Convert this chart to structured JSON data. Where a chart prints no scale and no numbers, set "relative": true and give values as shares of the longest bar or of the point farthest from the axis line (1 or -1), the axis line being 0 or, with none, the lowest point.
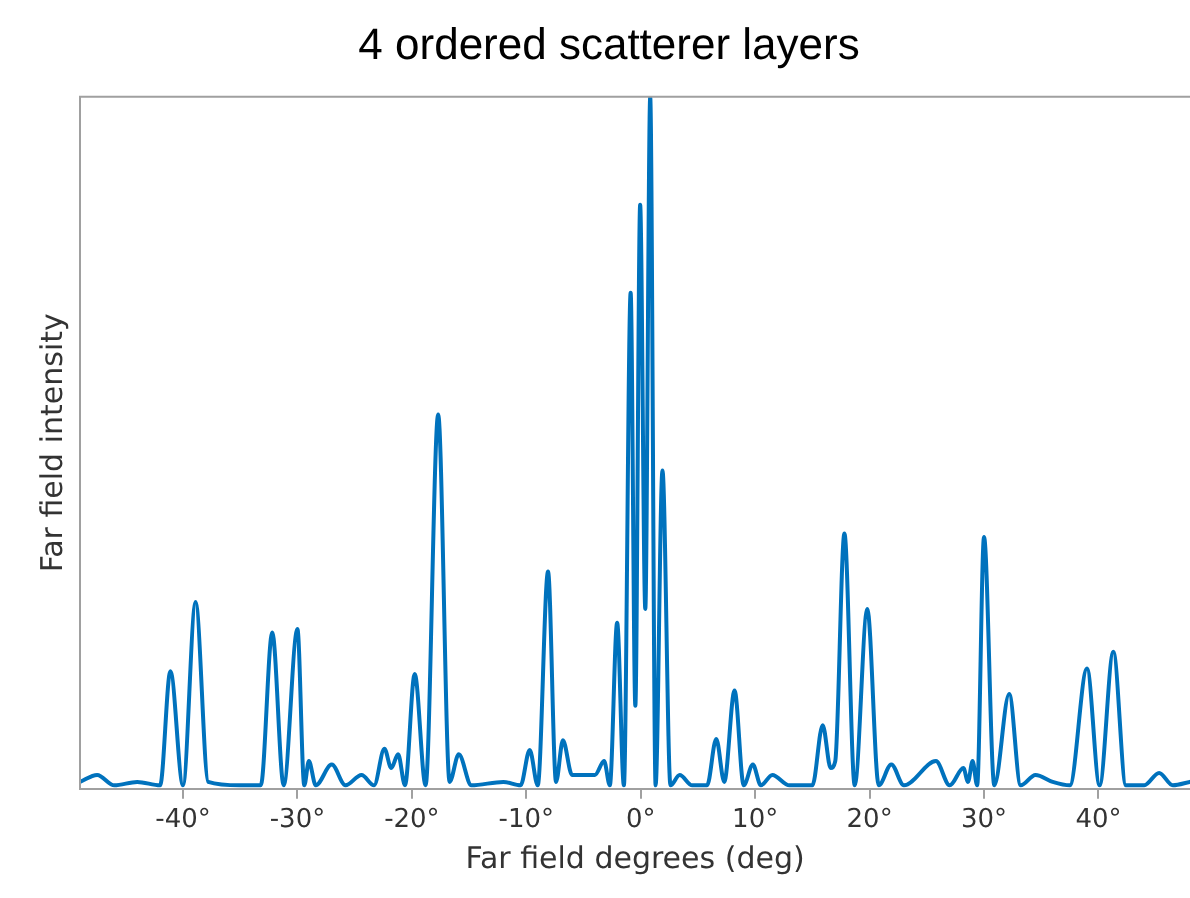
{
  "chart_data": {
    "type": "line",
    "title": "4 ordered scatterer layers",
    "xlabel": "Far field degrees (deg)",
    "ylabel": "Far field intensity",
    "relative": true,
    "grid": false,
    "legend": false,
    "marker": "none",
    "line_style": "solid",
    "xlim": [
      -49,
      48
    ],
    "xticks": [
      {
        "value": -40,
        "label": "-40°"
      },
      {
        "value": -30,
        "label": "-30°"
      },
      {
        "value": -20,
        "label": "-20°"
      },
      {
        "value": -10,
        "label": "-10°"
      },
      {
        "value": 0,
        "label": "0°"
      },
      {
        "value": 10,
        "label": "10°"
      },
      {
        "value": 20,
        "label": "20°"
      },
      {
        "value": 30,
        "label": "30°"
      },
      {
        "value": 40,
        "label": "40°"
      }
    ],
    "series": [
      {
        "color": "#0072bd",
        "x": [
          -49,
          -47.5,
          -46,
          -44,
          -42,
          -41.1,
          -40,
          -38.9,
          -37.8,
          -35,
          -33.2,
          -32.2,
          -31.2,
          -30,
          -29.4,
          -29,
          -28.4,
          -27,
          -25.8,
          -24.4,
          -23.3,
          -22.4,
          -21.8,
          -21.2,
          -20.6,
          -19.75,
          -18.8,
          -17.7,
          -16.7,
          -15.9,
          -14.8,
          -12,
          -10.5,
          -9.7,
          -9,
          -8.1,
          -7.4,
          -6.8,
          -6,
          -4,
          -3.2,
          -2.7,
          -2.06,
          -1.47,
          -0.88,
          -0.47,
          -0.05,
          0.4,
          0.83,
          1.3,
          1.9,
          2.6,
          3.4,
          4.5,
          5.8,
          6.6,
          7.3,
          8.2,
          9,
          9.8,
          10.5,
          11.5,
          13,
          15,
          15.9,
          16.6,
          17,
          17.8,
          18.7,
          19.8,
          20.8,
          21.9,
          23,
          25.8,
          27,
          28.2,
          28.6,
          29,
          29.4,
          30,
          30.9,
          32.2,
          33.2,
          34.5,
          36,
          37.5,
          39,
          40.1,
          41.3,
          42.4,
          44,
          45.3,
          46.5,
          48
        ],
        "values": [
          0.01,
          0.02,
          0.005,
          0.01,
          0.005,
          0.17,
          0.005,
          0.27,
          0.01,
          0.005,
          0.005,
          0.226,
          0.005,
          0.231,
          0.005,
          0.04,
          0.005,
          0.035,
          0.005,
          0.02,
          0.005,
          0.058,
          0.03,
          0.05,
          0.005,
          0.166,
          0.005,
          0.541,
          0.01,
          0.05,
          0.005,
          0.01,
          0.005,
          0.056,
          0.005,
          0.314,
          0.01,
          0.07,
          0.02,
          0.02,
          0.04,
          0.005,
          0.24,
          0.005,
          0.717,
          0.12,
          0.844,
          0.26,
          1,
          0.005,
          0.46,
          0.005,
          0.02,
          0.005,
          0.005,
          0.072,
          0.01,
          0.142,
          0.005,
          0.035,
          0.005,
          0.02,
          0.005,
          0.005,
          0.092,
          0.03,
          0.04,
          0.369,
          0.005,
          0.26,
          0.005,
          0.035,
          0.005,
          0.04,
          0.005,
          0.03,
          0.01,
          0.04,
          0.005,
          0.364,
          0.005,
          0.137,
          0.005,
          0.02,
          0.01,
          0.005,
          0.174,
          0.005,
          0.198,
          0.005,
          0.005,
          0.023,
          0.005,
          0.01
        ]
      }
    ]
  }
}
